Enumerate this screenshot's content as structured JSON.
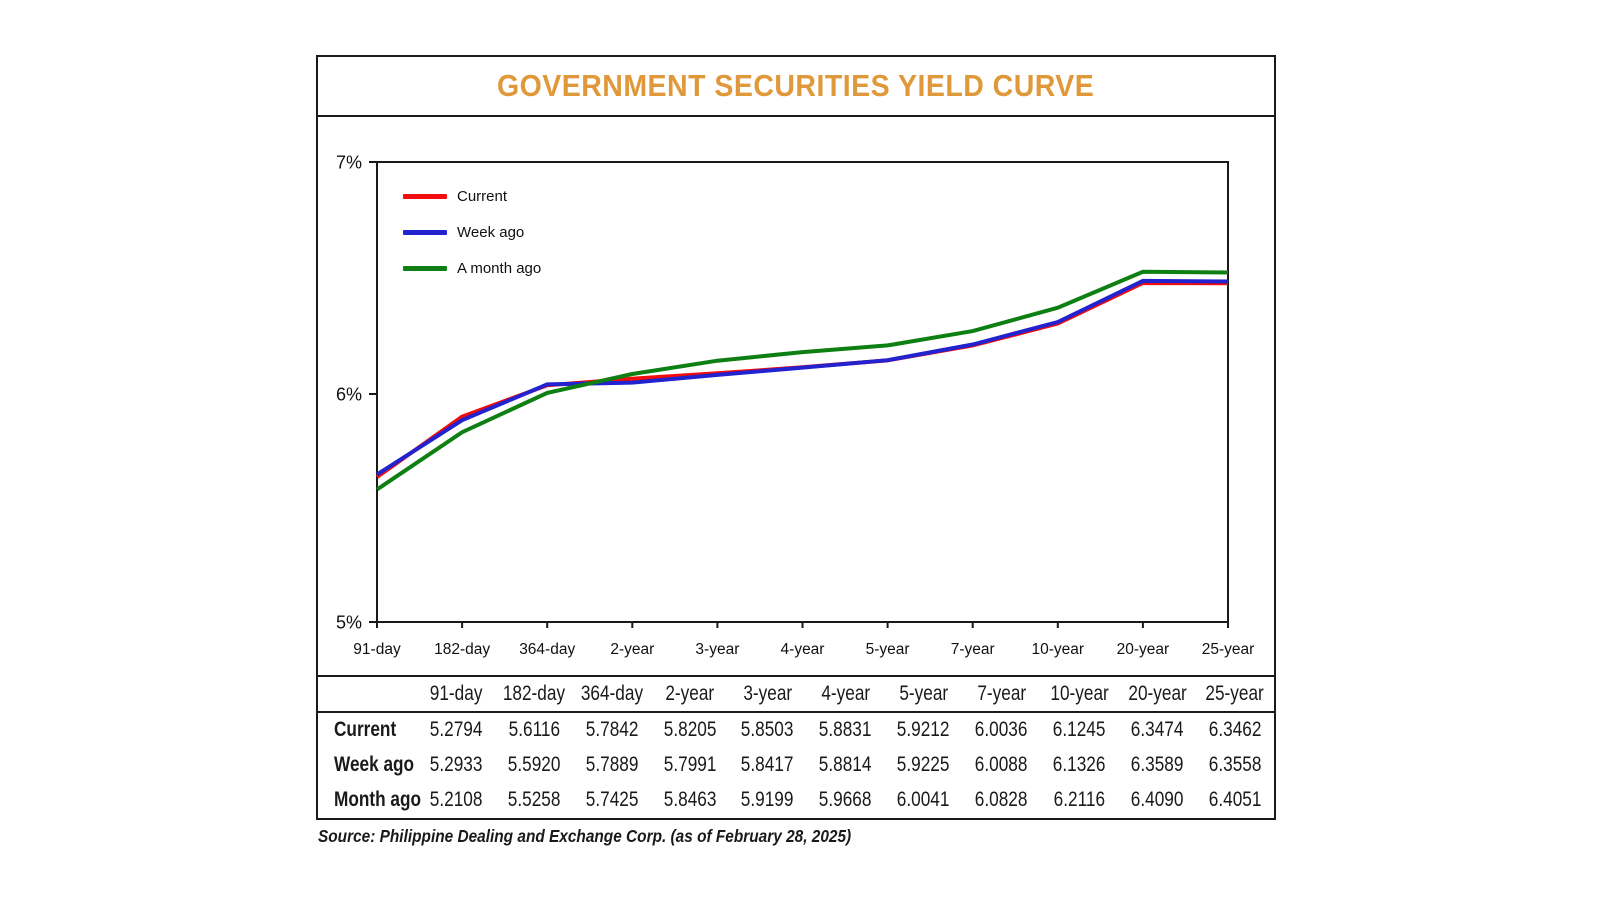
{
  "card": {
    "title": "GOVERNMENT SECURITIES YIELD CURVE"
  },
  "chart_data": {
    "type": "line",
    "title": "GOVERNMENT SECURITIES YIELD CURVE",
    "categories": [
      "91-day",
      "182-day",
      "364-day",
      "2-year",
      "3-year",
      "4-year",
      "5-year",
      "7-year",
      "10-year",
      "20-year",
      "25-year"
    ],
    "series": [
      {
        "name": "Current",
        "color": "#f20c0c",
        "values": [
          5.2794,
          5.6116,
          5.7842,
          5.8205,
          5.8503,
          5.8831,
          5.9212,
          6.0036,
          6.1245,
          6.3474,
          6.3462
        ]
      },
      {
        "name": "Week ago",
        "color": "#2222ce",
        "values": [
          5.2933,
          5.592,
          5.7889,
          5.7991,
          5.8417,
          5.8814,
          5.9225,
          6.0088,
          6.1326,
          6.3589,
          6.3558
        ]
      },
      {
        "name": "A month ago",
        "color": "#0e7f12",
        "values": [
          5.2108,
          5.5258,
          5.7425,
          5.8463,
          5.9199,
          5.9668,
          6.0041,
          6.0828,
          6.2116,
          6.409,
          6.4051
        ]
      }
    ],
    "ylim": [
      5,
      7
    ],
    "yticks": [
      "7%",
      "6%",
      "5%"
    ],
    "legend_position": "top-left",
    "grid": false
  },
  "table": {
    "columns": [
      "91-day",
      "182-day",
      "364-day",
      "2-year",
      "3-year",
      "4-year",
      "5-year",
      "7-year",
      "10-year",
      "20-year",
      "25-year"
    ],
    "rows": [
      {
        "label": "Current",
        "values": [
          "5.2794",
          "5.6116",
          "5.7842",
          "5.8205",
          "5.8503",
          "5.8831",
          "5.9212",
          "6.0036",
          "6.1245",
          "6.3474",
          "6.3462"
        ]
      },
      {
        "label": "Week ago",
        "values": [
          "5.2933",
          "5.5920",
          "5.7889",
          "5.7991",
          "5.8417",
          "5.8814",
          "5.9225",
          "6.0088",
          "6.1326",
          "6.3589",
          "6.3558"
        ]
      },
      {
        "label": "Month ago",
        "values": [
          "5.2108",
          "5.5258",
          "5.7425",
          "5.8463",
          "5.9199",
          "5.9668",
          "6.0041",
          "6.0828",
          "6.2116",
          "6.4090",
          "6.4051"
        ]
      }
    ]
  },
  "source": "Source: Philippine Dealing and Exchange Corp. (as of February 28, 2025)",
  "colors": {
    "title": "#e0993a",
    "border": "#1a1a1a",
    "current": "#f20c0c",
    "week_ago": "#2222ce",
    "month_ago": "#0e7f12"
  }
}
